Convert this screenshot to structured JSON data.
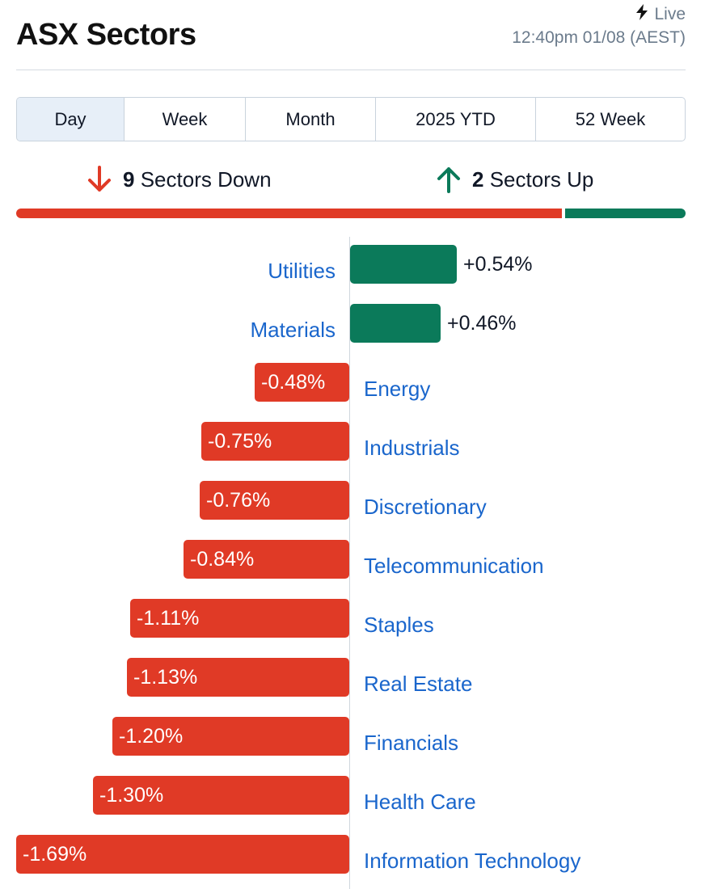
{
  "header": {
    "title": "ASX Sectors",
    "live_label": "Live",
    "timestamp": "12:40pm 01/08 (AEST)"
  },
  "tabs": [
    {
      "label": "Day",
      "active": true
    },
    {
      "label": "Week",
      "active": false
    },
    {
      "label": "Month",
      "active": false
    },
    {
      "label": "2025 YTD",
      "active": false
    },
    {
      "label": "52 Week",
      "active": false
    }
  ],
  "summary": {
    "down_count": "9",
    "down_label": "Sectors Down",
    "up_count": "2",
    "up_label": "Sectors Up"
  },
  "colors": {
    "up": "#0b7a5a",
    "down": "#e03a26",
    "link": "#1a66cc"
  },
  "icons": {
    "live": "lightning-icon",
    "down": "arrow-down-icon",
    "up": "arrow-up-icon"
  },
  "chart_data": {
    "type": "bar",
    "orientation": "horizontal",
    "categories": [
      "Utilities",
      "Materials",
      "Energy",
      "Industrials",
      "Discretionary",
      "Telecommunication",
      "Staples",
      "Real Estate",
      "Financials",
      "Health Care",
      "Information Technology"
    ],
    "values": [
      0.54,
      0.46,
      -0.48,
      -0.75,
      -0.76,
      -0.84,
      -1.11,
      -1.13,
      -1.2,
      -1.3,
      -1.69
    ],
    "labels": [
      "+0.54%",
      "+0.46%",
      "-0.48%",
      "-0.75%",
      "-0.76%",
      "-0.84%",
      "-1.11%",
      "-1.13%",
      "-1.20%",
      "-1.30%",
      "-1.69%"
    ]
  }
}
